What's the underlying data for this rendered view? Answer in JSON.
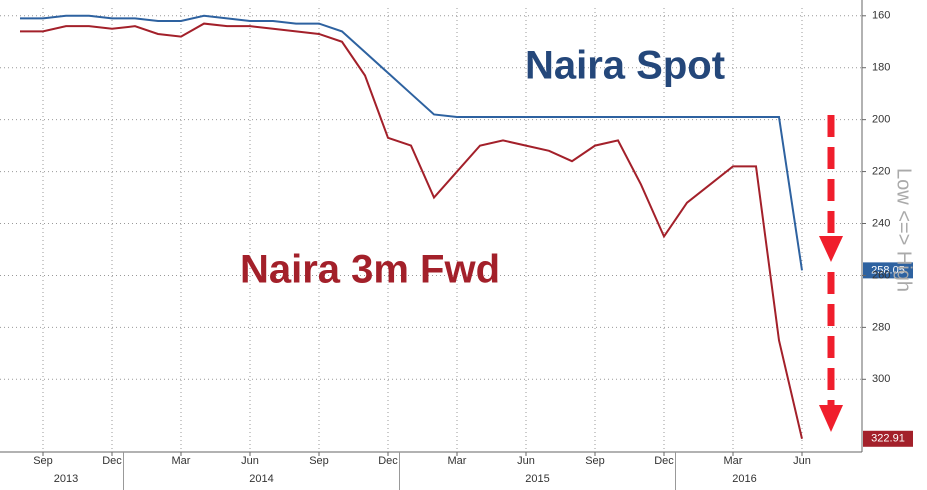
{
  "chart_data": {
    "type": "line",
    "x": [
      "2013-08",
      "2013-09",
      "2013-10",
      "2013-11",
      "2013-12",
      "2014-01",
      "2014-02",
      "2014-03",
      "2014-04",
      "2014-05",
      "2014-06",
      "2014-07",
      "2014-08",
      "2014-09",
      "2014-10",
      "2014-11",
      "2014-12",
      "2015-01",
      "2015-02",
      "2015-03",
      "2015-04",
      "2015-05",
      "2015-06",
      "2015-07",
      "2015-08",
      "2015-09",
      "2015-10",
      "2015-11",
      "2015-12",
      "2016-01",
      "2016-02",
      "2016-03",
      "2016-04",
      "2016-05",
      "2016-06"
    ],
    "series": [
      {
        "name": "Naira Spot",
        "color": "#2e62a0",
        "values": [
          161,
          161,
          160,
          160,
          161,
          161,
          162,
          162,
          160,
          161,
          162,
          162,
          163,
          163,
          166,
          174,
          182,
          190,
          198,
          199,
          199,
          199,
          199,
          199,
          199,
          199,
          199,
          199,
          199,
          199,
          199,
          199,
          199,
          199,
          258.05
        ]
      },
      {
        "name": "Naira 3m Fwd",
        "color": "#a3202a",
        "values": [
          166,
          166,
          164,
          164,
          165,
          164,
          167,
          168,
          163,
          164,
          164,
          165,
          166,
          167,
          170,
          183,
          207,
          210,
          230,
          220,
          210,
          208,
          210,
          212,
          216,
          210,
          208,
          225,
          245,
          232,
          225,
          218,
          218,
          285,
          322.91
        ]
      }
    ],
    "ylim": [
      157,
      328
    ],
    "invert_y": true,
    "yticks": [
      160,
      180,
      200,
      220,
      240,
      260,
      280,
      300
    ],
    "xticks": [
      {
        "value": "2013-09",
        "label": "Sep"
      },
      {
        "value": "2013-12",
        "label": "Dec"
      },
      {
        "value": "2014-03",
        "label": "Mar"
      },
      {
        "value": "2014-06",
        "label": "Jun"
      },
      {
        "value": "2014-09",
        "label": "Sep"
      },
      {
        "value": "2014-12",
        "label": "Dec"
      },
      {
        "value": "2015-03",
        "label": "Mar"
      },
      {
        "value": "2015-06",
        "label": "Jun"
      },
      {
        "value": "2015-09",
        "label": "Sep"
      },
      {
        "value": "2015-12",
        "label": "Dec"
      },
      {
        "value": "2016-03",
        "label": "Mar"
      },
      {
        "value": "2016-06",
        "label": "Jun"
      }
    ],
    "years": [
      "2013",
      "2014",
      "2015",
      "2016"
    ],
    "annotations": [
      "Low <=> High"
    ],
    "grid": true
  }
}
